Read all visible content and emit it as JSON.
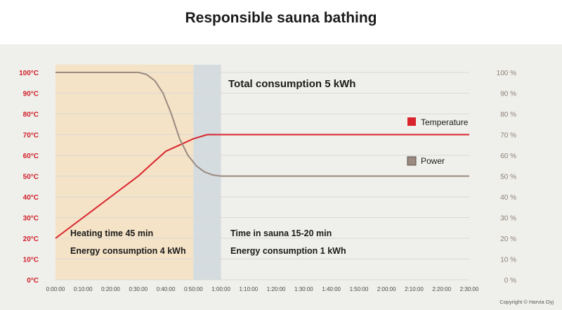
{
  "chart_data": {
    "type": "line",
    "title": "Responsible sauna bathing",
    "x_ticks": [
      "0:00:00",
      "0:10:00",
      "0:20:00",
      "0:30:00",
      "0:40:00",
      "0:50:00",
      "1:00:00",
      "1:10:00",
      "1:20:00",
      "1:30:00",
      "1:40:00",
      "1:50:00",
      "2:00:00",
      "2:10:00",
      "2:20:00",
      "2:30:00"
    ],
    "x_range_min": [
      0,
      150
    ],
    "y_left_ticks": [
      "0°C",
      "10°C",
      "20°C",
      "30°C",
      "40°C",
      "50°C",
      "60°C",
      "70°C",
      "80°C",
      "90°C",
      "100°C"
    ],
    "y_left_range": [
      0,
      100
    ],
    "y_right_ticks": [
      "0 %",
      "10 %",
      "20 %",
      "30 %",
      "40 %",
      "50 %",
      "60 %",
      "70 %",
      "80 %",
      "90 %",
      "100 %"
    ],
    "y_right_range": [
      0,
      100
    ],
    "grid": "horizontal",
    "legend_placement": "right",
    "series": [
      {
        "name": "Temperature",
        "color": "#d9232d",
        "axis": "left",
        "x": [
          0,
          10,
          20,
          30,
          35,
          40,
          45,
          50,
          55,
          60,
          150
        ],
        "y": [
          20,
          30,
          40,
          50,
          56,
          62,
          65,
          68,
          70,
          70,
          70
        ]
      },
      {
        "name": "Power",
        "color": "#9a8a80",
        "axis": "right",
        "x": [
          0,
          30,
          33,
          36,
          39,
          42,
          45,
          48,
          51,
          54,
          57,
          60,
          150
        ],
        "y": [
          100,
          100,
          99,
          96,
          90,
          80,
          68,
          60,
          55,
          52,
          50.5,
          50,
          50
        ]
      }
    ],
    "regions": [
      {
        "name": "heating",
        "x_start": 0,
        "x_end": 50,
        "color": "#f5e3c7"
      },
      {
        "name": "transition",
        "x_start": 50,
        "x_end": 60,
        "color": "#d5dce0"
      }
    ],
    "annotations": {
      "total": "Total consumption 5 kWh",
      "heating_time": "Heating time 45 min",
      "heating_energy": "Energy consumption 4 kWh",
      "sauna_time": "Time in sauna 15-20 min",
      "sauna_energy": "Energy consumption 1 kWh"
    },
    "copyright": "Copyright © Harvia Oyj"
  },
  "colors": {
    "panel_bg": "#efefeb",
    "grid": "#d8d8d4",
    "temperature": "#d9232d",
    "power": "#9a8a80"
  }
}
